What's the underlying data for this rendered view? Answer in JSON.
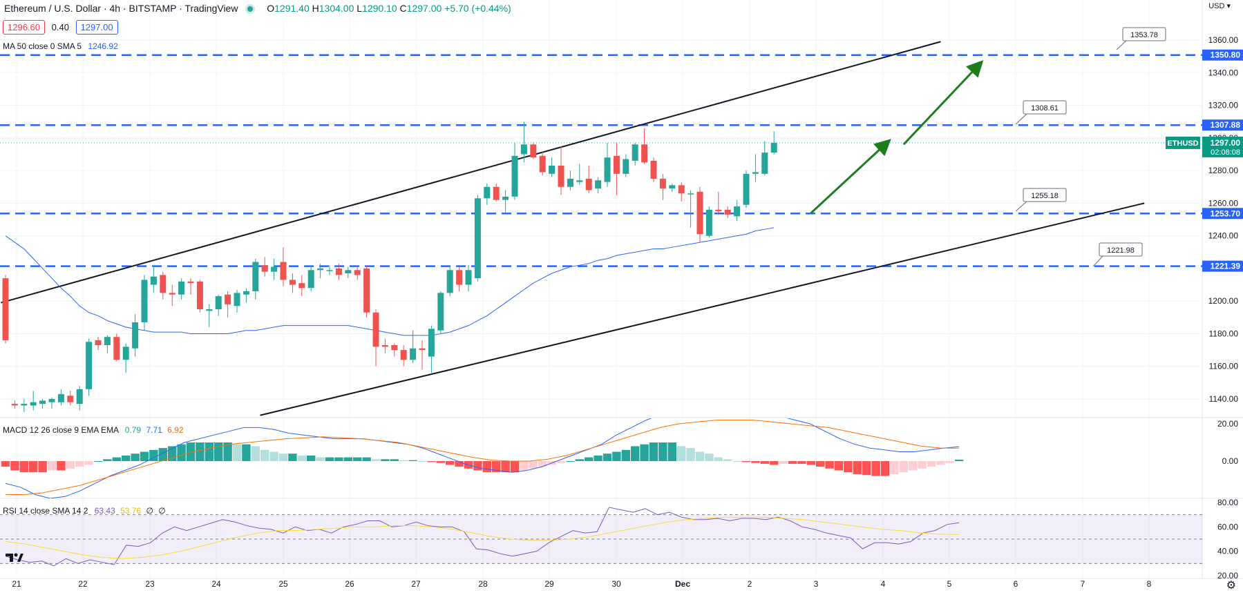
{
  "header": {
    "symbol_title": "Ethereum / U.S. Dollar · 4h · BITSTAMP · TradingView",
    "ohlc": {
      "o_label": "O",
      "o": "1291.40",
      "h_label": "H",
      "h": "1304.00",
      "l_label": "L",
      "l": "1290.10",
      "c_label": "C",
      "c": "1297.00",
      "change": "+5.70 (+0.44%)"
    },
    "bid": "1296.60",
    "spread": "0.40",
    "ask": "1297.00",
    "ma_label": "MA 50 close 0 SMA 5",
    "ma_value": "1246.92"
  },
  "axis_currency": "USD",
  "macd": {
    "label": "MACD 12 26 close 9 EMA EMA",
    "v1": "0.79",
    "v2": "7.71",
    "v3": "6.92"
  },
  "rsi": {
    "label": "RSI 14 close SMA 14 2",
    "v1": "63.43",
    "v2": "53.76",
    "v3": "∅",
    "v4": "∅"
  },
  "ticker_tag": "ETHUSD",
  "current_price_tag": "1297.00",
  "countdown_tag": "02:08:08",
  "colors": {
    "up": "#26a69a",
    "down": "#ef5350",
    "ma": "#2962ff",
    "macd_line": "#2962ff",
    "signal_line": "#ff6d00",
    "rsi_line": "#7e57c2",
    "rsi_ma": "#fdd835",
    "level": "#2962ff",
    "arrow": "#1b7e1b"
  },
  "chart_data": [
    {
      "type": "candlestick",
      "title": "Ethereum / U.S. Dollar · 4h · BITSTAMP",
      "ylabel": "USD",
      "ylim": [
        1130,
        1370
      ],
      "y_ticks": [
        1140,
        1160,
        1180,
        1200,
        1220,
        1240,
        1260,
        1280,
        1300,
        1320,
        1340,
        1360
      ],
      "x_tick_labels": [
        "21",
        "22",
        "23",
        "24",
        "25",
        "26",
        "27",
        "28",
        "29",
        "30",
        "Dec",
        "2",
        "3",
        "4",
        "5",
        "6",
        "7",
        "8"
      ],
      "candles": [
        {
          "o": 1214,
          "h": 1216,
          "l": 1174,
          "c": 1176
        },
        {
          "o": 1137,
          "h": 1139,
          "l": 1134,
          "c": 1136
        },
        {
          "o": 1136,
          "h": 1140,
          "l": 1132,
          "c": 1137
        },
        {
          "o": 1136,
          "h": 1145,
          "l": 1133,
          "c": 1138
        },
        {
          "o": 1137,
          "h": 1140,
          "l": 1134,
          "c": 1139
        },
        {
          "o": 1138,
          "h": 1141,
          "l": 1134,
          "c": 1140
        },
        {
          "o": 1138,
          "h": 1146,
          "l": 1136,
          "c": 1143
        },
        {
          "o": 1142,
          "h": 1145,
          "l": 1136,
          "c": 1138
        },
        {
          "o": 1137,
          "h": 1148,
          "l": 1133,
          "c": 1146
        },
        {
          "o": 1146,
          "h": 1177,
          "l": 1142,
          "c": 1175
        },
        {
          "o": 1176,
          "h": 1178,
          "l": 1170,
          "c": 1173
        },
        {
          "o": 1173,
          "h": 1179,
          "l": 1168,
          "c": 1178
        },
        {
          "o": 1178,
          "h": 1180,
          "l": 1163,
          "c": 1164
        },
        {
          "o": 1164,
          "h": 1174,
          "l": 1156,
          "c": 1172
        },
        {
          "o": 1171,
          "h": 1192,
          "l": 1166,
          "c": 1187
        },
        {
          "o": 1187,
          "h": 1216,
          "l": 1182,
          "c": 1213
        },
        {
          "o": 1210,
          "h": 1222,
          "l": 1205,
          "c": 1215
        },
        {
          "o": 1216,
          "h": 1218,
          "l": 1201,
          "c": 1205
        },
        {
          "o": 1205,
          "h": 1210,
          "l": 1197,
          "c": 1204
        },
        {
          "o": 1204,
          "h": 1214,
          "l": 1201,
          "c": 1212
        },
        {
          "o": 1212,
          "h": 1214,
          "l": 1204,
          "c": 1211
        },
        {
          "o": 1212,
          "h": 1213,
          "l": 1193,
          "c": 1195
        },
        {
          "o": 1194,
          "h": 1198,
          "l": 1184,
          "c": 1195
        },
        {
          "o": 1195,
          "h": 1204,
          "l": 1191,
          "c": 1203
        },
        {
          "o": 1204,
          "h": 1206,
          "l": 1190,
          "c": 1198
        },
        {
          "o": 1197,
          "h": 1207,
          "l": 1193,
          "c": 1205
        },
        {
          "o": 1204,
          "h": 1208,
          "l": 1199,
          "c": 1206
        },
        {
          "o": 1206,
          "h": 1226,
          "l": 1201,
          "c": 1224
        },
        {
          "o": 1222,
          "h": 1227,
          "l": 1215,
          "c": 1218
        },
        {
          "o": 1218,
          "h": 1226,
          "l": 1213,
          "c": 1221
        },
        {
          "o": 1224,
          "h": 1233,
          "l": 1209,
          "c": 1213
        },
        {
          "o": 1213,
          "h": 1217,
          "l": 1205,
          "c": 1210
        },
        {
          "o": 1211,
          "h": 1216,
          "l": 1203,
          "c": 1208
        },
        {
          "o": 1208,
          "h": 1222,
          "l": 1206,
          "c": 1219
        },
        {
          "o": 1219,
          "h": 1223,
          "l": 1214,
          "c": 1220
        },
        {
          "o": 1219,
          "h": 1222,
          "l": 1216,
          "c": 1219
        },
        {
          "o": 1220,
          "h": 1223,
          "l": 1213,
          "c": 1216
        },
        {
          "o": 1217,
          "h": 1221,
          "l": 1214,
          "c": 1219
        },
        {
          "o": 1219,
          "h": 1222,
          "l": 1213,
          "c": 1216
        },
        {
          "o": 1220,
          "h": 1222,
          "l": 1190,
          "c": 1193
        },
        {
          "o": 1193,
          "h": 1195,
          "l": 1160,
          "c": 1172
        },
        {
          "o": 1173,
          "h": 1177,
          "l": 1168,
          "c": 1172
        },
        {
          "o": 1173,
          "h": 1174,
          "l": 1166,
          "c": 1170
        },
        {
          "o": 1170,
          "h": 1173,
          "l": 1160,
          "c": 1164
        },
        {
          "o": 1164,
          "h": 1182,
          "l": 1162,
          "c": 1171
        },
        {
          "o": 1171,
          "h": 1176,
          "l": 1158,
          "c": 1170
        },
        {
          "o": 1166,
          "h": 1185,
          "l": 1156,
          "c": 1183
        },
        {
          "o": 1182,
          "h": 1206,
          "l": 1180,
          "c": 1205
        },
        {
          "o": 1205,
          "h": 1222,
          "l": 1203,
          "c": 1219
        },
        {
          "o": 1219,
          "h": 1221,
          "l": 1206,
          "c": 1210
        },
        {
          "o": 1210,
          "h": 1222,
          "l": 1206,
          "c": 1219
        },
        {
          "o": 1214,
          "h": 1265,
          "l": 1212,
          "c": 1263
        },
        {
          "o": 1263,
          "h": 1272,
          "l": 1259,
          "c": 1270
        },
        {
          "o": 1270,
          "h": 1272,
          "l": 1261,
          "c": 1262
        },
        {
          "o": 1262,
          "h": 1268,
          "l": 1254,
          "c": 1264
        },
        {
          "o": 1264,
          "h": 1297,
          "l": 1262,
          "c": 1289
        },
        {
          "o": 1290,
          "h": 1310,
          "l": 1285,
          "c": 1296
        },
        {
          "o": 1296,
          "h": 1297,
          "l": 1287,
          "c": 1288
        },
        {
          "o": 1289,
          "h": 1292,
          "l": 1277,
          "c": 1279
        },
        {
          "o": 1278,
          "h": 1288,
          "l": 1276,
          "c": 1283
        },
        {
          "o": 1283,
          "h": 1295,
          "l": 1265,
          "c": 1270
        },
        {
          "o": 1270,
          "h": 1280,
          "l": 1268,
          "c": 1275
        },
        {
          "o": 1273,
          "h": 1284,
          "l": 1271,
          "c": 1274
        },
        {
          "o": 1275,
          "h": 1283,
          "l": 1266,
          "c": 1268
        },
        {
          "o": 1269,
          "h": 1276,
          "l": 1266,
          "c": 1274
        },
        {
          "o": 1273,
          "h": 1297,
          "l": 1270,
          "c": 1288
        },
        {
          "o": 1289,
          "h": 1297,
          "l": 1265,
          "c": 1278
        },
        {
          "o": 1278,
          "h": 1290,
          "l": 1276,
          "c": 1287
        },
        {
          "o": 1286,
          "h": 1297,
          "l": 1283,
          "c": 1296
        },
        {
          "o": 1296,
          "h": 1306,
          "l": 1284,
          "c": 1285
        },
        {
          "o": 1286,
          "h": 1288,
          "l": 1273,
          "c": 1275
        },
        {
          "o": 1275,
          "h": 1278,
          "l": 1262,
          "c": 1269
        },
        {
          "o": 1269,
          "h": 1272,
          "l": 1267,
          "c": 1271
        },
        {
          "o": 1271,
          "h": 1273,
          "l": 1261,
          "c": 1266
        },
        {
          "o": 1266,
          "h": 1268,
          "l": 1245,
          "c": 1266
        },
        {
          "o": 1267,
          "h": 1270,
          "l": 1236,
          "c": 1241
        },
        {
          "o": 1240,
          "h": 1258,
          "l": 1239,
          "c": 1256
        },
        {
          "o": 1256,
          "h": 1267,
          "l": 1253,
          "c": 1255
        },
        {
          "o": 1256,
          "h": 1258,
          "l": 1251,
          "c": 1253
        },
        {
          "o": 1252,
          "h": 1262,
          "l": 1249,
          "c": 1258
        },
        {
          "o": 1259,
          "h": 1280,
          "l": 1257,
          "c": 1278
        },
        {
          "o": 1278,
          "h": 1290,
          "l": 1273,
          "c": 1279
        },
        {
          "o": 1278,
          "h": 1298,
          "l": 1277,
          "c": 1291
        },
        {
          "o": 1291,
          "h": 1304,
          "l": 1290,
          "c": 1297
        }
      ],
      "ma50": [
        1240,
        1236,
        1232,
        1226,
        1220,
        1214,
        1208,
        1203,
        1197,
        1193,
        1191,
        1188,
        1186,
        1184,
        1183,
        1182,
        1181,
        1181,
        1181,
        1181,
        1180,
        1180,
        1180,
        1180,
        1180,
        1181,
        1182,
        1182,
        1183,
        1184,
        1185,
        1185,
        1185,
        1185,
        1185,
        1185,
        1185,
        1185,
        1184,
        1183,
        1182,
        1181,
        1180,
        1179,
        1179,
        1179,
        1179,
        1180,
        1181,
        1183,
        1185,
        1188,
        1191,
        1195,
        1199,
        1203,
        1207,
        1211,
        1214,
        1217,
        1219,
        1221,
        1222,
        1223,
        1225,
        1226,
        1228,
        1229,
        1230,
        1231,
        1232,
        1232,
        1233,
        1234,
        1235,
        1236,
        1237,
        1238,
        1239,
        1240,
        1241,
        1243,
        1244,
        1245
      ],
      "levels": [
        {
          "price": 1350.8,
          "label": "1350.80"
        },
        {
          "price": 1307.88,
          "label": "1307.88"
        },
        {
          "price": 1253.7,
          "label": "1253.70"
        },
        {
          "price": 1221.39,
          "label": "1221.39"
        }
      ],
      "price_notes": [
        "1353.78",
        "1308.61",
        "1255.18",
        "1221.98"
      ],
      "channel_upper": {
        "start": {
          "bar": -0.5,
          "price": 1199
        },
        "end": {
          "bar": 101,
          "price": 1359
        }
      },
      "channel_lower": {
        "start": {
          "bar": 27.5,
          "price": 1130
        },
        "end": {
          "bar": 123,
          "price": 1260
        }
      },
      "arrows": [
        {
          "from": {
            "bar": 87,
            "price": 1254
          },
          "to": {
            "bar": 95,
            "price": 1296
          }
        },
        {
          "from": {
            "bar": 97,
            "price": 1296
          },
          "to": {
            "bar": 105,
            "price": 1344
          }
        }
      ]
    },
    {
      "type": "bar",
      "title": "MACD 12 26 close 9 EMA EMA",
      "ylim": [
        -23,
        27
      ],
      "y_ticks": [
        0,
        20
      ],
      "histogram": [
        -3,
        -5,
        -6,
        -6,
        -6,
        -5,
        -5,
        -4,
        -3,
        -2,
        0,
        1,
        2,
        3,
        4,
        5,
        6,
        7,
        8,
        9,
        10,
        10,
        10,
        10,
        10,
        9,
        9,
        8,
        6,
        5,
        4,
        4,
        3,
        3,
        2,
        2,
        2,
        2,
        2,
        2,
        1,
        1,
        1,
        0.5,
        0.5,
        0,
        -0.5,
        -1,
        -2,
        -3,
        -4,
        -5,
        -6,
        -6,
        -6,
        -6,
        -5,
        -4,
        -3,
        -2,
        -1,
        0,
        1,
        2,
        3,
        4,
        5,
        6,
        8,
        9,
        10,
        10,
        10,
        8,
        7,
        5,
        4,
        2,
        1,
        0,
        -0.5,
        -1,
        -1.5,
        -2,
        -1.5,
        -1.5,
        -1.5,
        -2,
        -3,
        -4,
        -5,
        -6,
        -7,
        -7.5,
        -8,
        -8,
        -7,
        -6,
        -5,
        -4,
        -3,
        -2,
        -1,
        0.79
      ],
      "macd": [
        -12,
        -14,
        -18,
        -20,
        -19,
        -16,
        -12,
        -8,
        -5,
        -2,
        2,
        6,
        10,
        12,
        14,
        16,
        18,
        18,
        17,
        15,
        14,
        13,
        12,
        12,
        12,
        11,
        10,
        9,
        7,
        4,
        1,
        -2,
        -4,
        -5,
        -6,
        -5,
        -3,
        0,
        3,
        6,
        9,
        14,
        18,
        22,
        25,
        26,
        27,
        28,
        28,
        27,
        27,
        26,
        24,
        22,
        20,
        16,
        12,
        9,
        7,
        6,
        5,
        5,
        6,
        7,
        7.71
      ],
      "signal": [
        -18,
        -18,
        -17,
        -15,
        -13,
        -10,
        -7,
        -4,
        -1,
        2,
        5,
        7,
        9,
        10,
        11,
        12,
        12.5,
        13,
        12.5,
        12,
        11,
        10,
        8,
        6,
        4,
        2,
        0.5,
        0,
        0,
        1,
        3,
        6,
        9,
        12,
        15,
        18,
        20,
        21,
        22,
        22,
        22,
        21,
        20,
        19,
        18,
        16,
        14,
        12,
        10,
        8,
        7,
        6.92
      ]
    },
    {
      "type": "line",
      "title": "RSI 14 close SMA 14 2",
      "ylim": [
        18,
        82
      ],
      "y_ticks": [
        20,
        40,
        60,
        80
      ],
      "band": [
        30,
        70
      ],
      "midline": 50,
      "rsi": [
        36,
        33,
        31,
        32,
        28,
        34,
        30,
        33,
        31,
        29,
        45,
        44,
        47,
        55,
        60,
        57,
        60,
        63,
        66,
        64,
        61,
        59,
        58,
        55,
        60,
        57,
        58,
        55,
        60,
        62,
        65,
        65,
        60,
        61,
        64,
        61,
        60,
        60,
        56,
        42,
        41,
        38,
        36,
        38,
        40,
        47,
        52,
        57,
        55,
        56,
        76,
        74,
        72,
        75,
        70,
        72,
        68,
        66,
        66,
        67,
        65,
        67,
        67,
        66,
        68,
        65,
        60,
        58,
        55,
        53,
        51,
        42,
        47,
        47,
        46,
        48,
        55,
        57,
        62,
        63.43
      ],
      "rsi_ma": [
        48,
        46,
        43,
        40,
        37,
        35,
        34,
        35,
        37,
        40,
        44,
        48,
        52,
        55,
        57,
        57,
        58,
        59,
        60,
        60,
        61,
        61,
        60,
        58,
        55,
        52,
        50,
        49,
        49,
        50,
        52,
        55,
        58,
        61,
        64,
        66,
        67,
        68,
        68,
        68,
        67,
        66,
        64,
        62,
        60,
        58,
        57,
        55,
        54,
        53.76
      ]
    }
  ]
}
